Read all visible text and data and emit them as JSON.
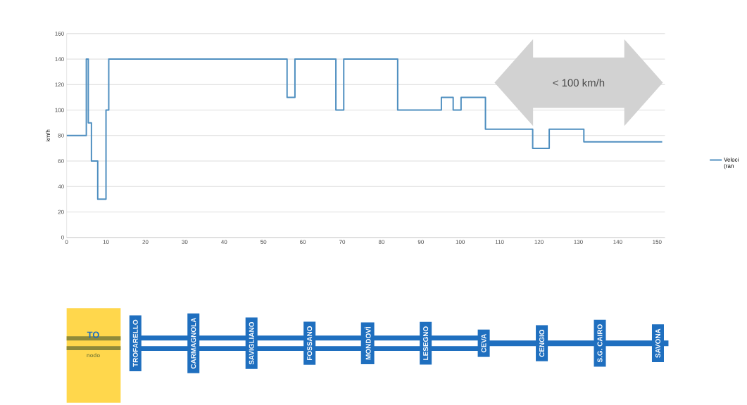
{
  "chart_data": {
    "type": "step",
    "ylabel": "km/h",
    "x": [
      0,
      5,
      5.5,
      6.3,
      7.9,
      10,
      10.7,
      56,
      58,
      68.4,
      70.4,
      84.1,
      95.2,
      98.2,
      100.2,
      106.4,
      118.4,
      122.6,
      131.4,
      151.3
    ],
    "series": [
      {
        "name": "Veloci (ran",
        "color": "#4f8fc0",
        "values": [
          80,
          140,
          90,
          60,
          30,
          100,
          140,
          110,
          140,
          100,
          140,
          100,
          110,
          100,
          110,
          85,
          70,
          85,
          75,
          75
        ]
      }
    ],
    "xlim": [
      0,
      152
    ],
    "ylim": [
      0,
      160
    ],
    "xticks": [
      0,
      10,
      20,
      30,
      40,
      50,
      60,
      70,
      80,
      90,
      100,
      110,
      120,
      130,
      140,
      150
    ],
    "yticks": [
      0,
      20,
      40,
      60,
      80,
      100,
      120,
      140,
      160
    ],
    "grid": "y",
    "legend": "right",
    "line_style": "solid",
    "marker": "none",
    "annotations": [
      "< 100 km/h",
      "TO",
      "nodo",
      "TROFARELLO",
      "CARMAGNOLA",
      "SAVIGLIANO",
      "FOSSANO",
      "MONDOVÌ",
      "LESEGNO",
      "CEVA",
      "CENGIO",
      "S.G. CAIRO",
      "SAVONA"
    ]
  }
}
